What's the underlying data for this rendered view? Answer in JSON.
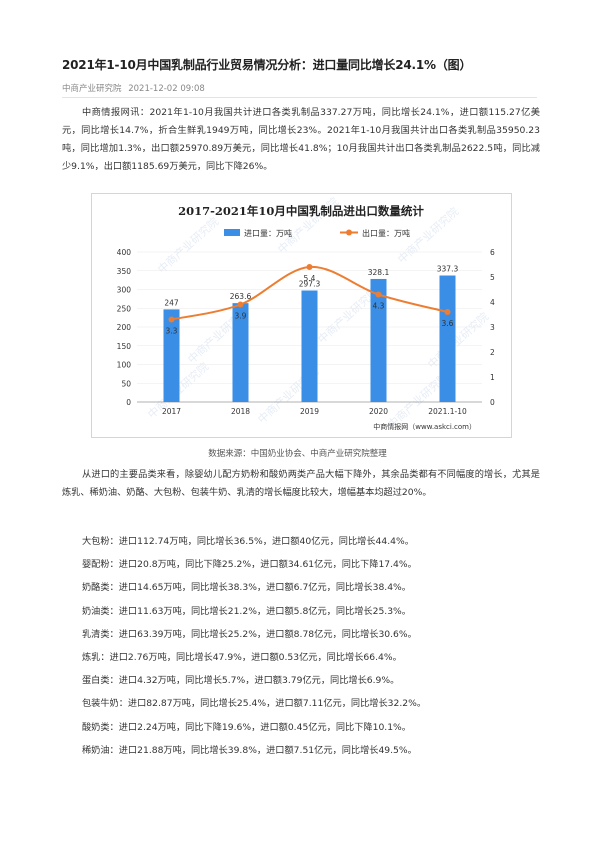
{
  "article": {
    "title": "2021年1-10月中国乳制品行业贸易情况分析：进口量同比增长24.1%（图）",
    "source": "中商产业研究院",
    "date": "2021-12-02 09:08",
    "intro": "中商情报网讯：2021年1-10月我国共计进口各类乳制品337.27万吨，同比增长24.1%，进口额115.27亿美元，同比增长14.7%，折合生鲜乳1949万吨，同比增长23%。2021年1-10月我国共计出口各类乳制品35950.23吨，同比增加1.3%，出口额25970.89万美元，同比增长41.8%；10月我国共计出口各类乳制品2622.5吨，同比减少9.1%，出口额1185.69万美元，同比下降26%。",
    "caption": "数据来源：中国奶业协会、中商产业研究院整理",
    "analysis": "从进口的主要品类来看，除婴幼儿配方奶粉和酸奶两类产品大幅下降外，其余品类都有不同幅度的增长，尤其是炼乳、稀奶油、奶酪、大包粉、包装牛奶、乳清的增长幅度比较大，增幅基本均超过20%。",
    "items": [
      "大包粉：进口112.74万吨，同比增长36.5%，进口额40亿元，同比增长44.4%。",
      "婴配粉：进口20.8万吨，同比下降25.2%，进口额34.61亿元，同比下降17.4%。",
      "奶酪类：进口14.65万吨，同比增长38.3%，进口额6.7亿元，同比增长38.4%。",
      "奶油类：进口11.63万吨，同比增长21.2%，进口额5.8亿元，同比增长25.3%。",
      "乳清类：进口63.39万吨，同比增长25.2%，进口额8.78亿元，同比增长30.6%。",
      "炼乳：进口2.76万吨，同比增长47.9%，进口额0.53亿元，同比增长66.4%。",
      "蛋白类：进口4.32万吨，同比增长5.7%，进口额3.79亿元，同比增长6.9%。",
      "包装牛奶：进口82.87万吨，同比增长25.4%，进口额7.11亿元，同比增长32.2%。",
      "酸奶类：进口2.24万吨，同比下降19.6%，进口额0.45亿元，同比下降10.1%。",
      "稀奶油：进口21.88万吨，同比增长39.8%，进口额7.51亿元，同比增长49.5%。"
    ]
  },
  "chart_data": {
    "type": "bar",
    "title": "2017-2021年10月中国乳制品进出口数量统计",
    "categories": [
      "2017",
      "2018",
      "2019",
      "2020",
      "2021.1-10"
    ],
    "series": [
      {
        "name": "进口量：万吨",
        "type": "bar",
        "axis": "left",
        "color": "#3a8ee6",
        "values": [
          247,
          263.6,
          297.3,
          328.1,
          337.3
        ]
      },
      {
        "name": "出口量：万吨",
        "type": "line",
        "axis": "right",
        "color": "#ed7d31",
        "values": [
          3.3,
          3.9,
          5.4,
          4.3,
          3.6
        ]
      }
    ],
    "ylim_left": [
      0,
      400
    ],
    "yticks_left": [
      0,
      50,
      100,
      150,
      200,
      250,
      300,
      350,
      400
    ],
    "ylim_right": [
      0,
      6
    ],
    "yticks_right": [
      0,
      1,
      2,
      3,
      4,
      5,
      6
    ],
    "legend_position": "top-center",
    "footer": "中商情报网（www.askci.com）",
    "watermark": "中商产业研究院"
  }
}
